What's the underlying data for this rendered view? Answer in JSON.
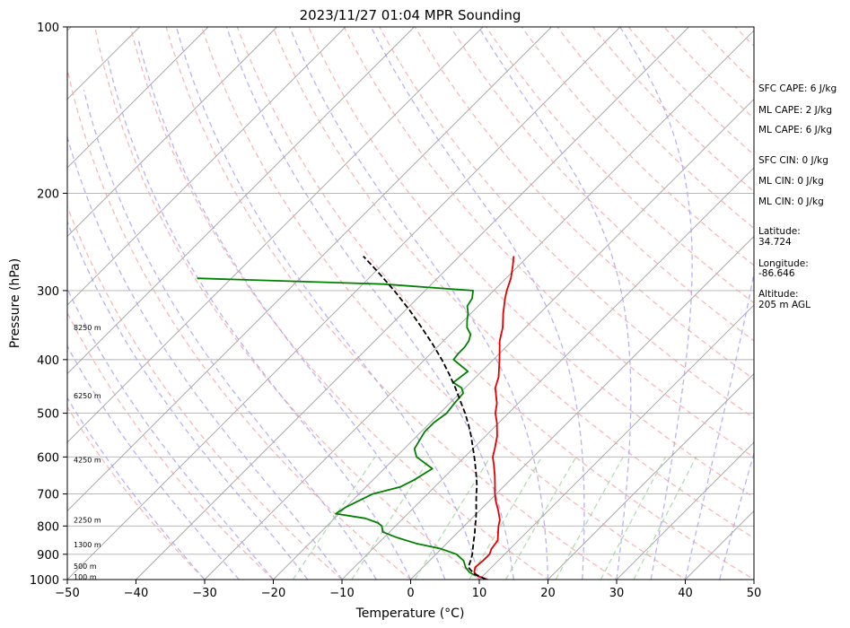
{
  "chart_data": {
    "type": "line",
    "title": "2023/11/27 01:04 MPR Sounding",
    "xlabel": "Temperature (°C)",
    "ylabel": "Pressure (hPa)",
    "xlim": [
      -50,
      50
    ],
    "ylim": [
      1000,
      100
    ],
    "yscale": "log",
    "x_ticks": [
      -50,
      -40,
      -30,
      -20,
      -10,
      0,
      10,
      20,
      30,
      40,
      50
    ],
    "y_ticks": [
      1000,
      900,
      800,
      700,
      600,
      500,
      400,
      300,
      200,
      100
    ],
    "grid": true,
    "colors": {
      "temperature": "#e00000",
      "dewpoint": "#008000",
      "parcel": "#000000",
      "dry_adiabat": "#f4a0a0",
      "moist_adiabat": "#a8a0ee",
      "mixing_ratio": "#9ad09a",
      "isotherm": "#a0a0a0"
    },
    "series": [
      {
        "key": "temperature",
        "pressure": [
          1000,
          985,
          970,
          950,
          925,
          900,
          880,
          850,
          820,
          800,
          780,
          750,
          720,
          700,
          680,
          650,
          620,
          600,
          580,
          550,
          520,
          500,
          480,
          450,
          430,
          400,
          370,
          350,
          330,
          310,
          300,
          285,
          270,
          260
        ],
        "values": [
          11.2,
          9.2,
          8.2,
          7.6,
          7.8,
          7.8,
          7.3,
          7.0,
          5.8,
          5.0,
          4.3,
          2.7,
          0.9,
          -0.2,
          -1.2,
          -2.8,
          -4.6,
          -5.9,
          -6.8,
          -8.3,
          -10.3,
          -11.9,
          -13.1,
          -15.6,
          -16.7,
          -19.1,
          -21.8,
          -23.3,
          -25.3,
          -27.2,
          -28.1,
          -29.3,
          -30.9,
          -32.1
        ]
      },
      {
        "key": "dewpoint",
        "pressure": [
          985,
          970,
          950,
          925,
          900,
          880,
          860,
          840,
          820,
          800,
          790,
          775,
          760,
          740,
          720,
          700,
          680,
          660,
          630,
          600,
          580,
          560,
          540,
          520,
          500,
          480,
          460,
          450,
          440,
          420,
          400,
          390,
          380,
          370,
          360,
          350,
          340,
          330,
          320,
          310,
          300,
          292,
          285
        ],
        "values": [
          9.0,
          7.5,
          6.2,
          5.0,
          3.0,
          0.0,
          -4.5,
          -8.0,
          -11.0,
          -12.0,
          -13.0,
          -15.5,
          -20.5,
          -20.0,
          -19.0,
          -18.0,
          -15.0,
          -14.0,
          -13.0,
          -17.0,
          -18.5,
          -19.0,
          -19.5,
          -19.5,
          -19.0,
          -19.3,
          -19.5,
          -20.5,
          -22.5,
          -22.0,
          -25.8,
          -26.0,
          -26.0,
          -26.3,
          -27.0,
          -28.5,
          -29.5,
          -30.4,
          -31.6,
          -32.0,
          -33.0,
          -47.0,
          -75.0
        ]
      },
      {
        "key": "parcel",
        "pressure": [
          1000,
          975,
          950,
          925,
          900,
          875,
          850,
          825,
          800,
          775,
          750,
          725,
          700,
          675,
          650,
          625,
          600,
          575,
          550,
          525,
          500,
          475,
          450,
          425,
          400,
          375,
          350,
          325,
          300,
          275,
          260
        ],
        "values": [
          11.0,
          8.3,
          6.6,
          6.0,
          5.3,
          4.4,
          3.5,
          2.6,
          1.6,
          0.6,
          -0.5,
          -1.7,
          -2.9,
          -4.1,
          -5.5,
          -7.0,
          -8.6,
          -10.3,
          -12.1,
          -14.1,
          -16.3,
          -18.8,
          -21.4,
          -24.3,
          -27.5,
          -31.1,
          -35.1,
          -39.5,
          -44.5,
          -50.2,
          -54.0
        ]
      }
    ],
    "height_labels": [
      {
        "text": "100 m",
        "pressure": 988
      },
      {
        "text": "500 m",
        "pressure": 945
      },
      {
        "text": "1300 m",
        "pressure": 865
      },
      {
        "text": "2250 m",
        "pressure": 780
      },
      {
        "text": "4250 m",
        "pressure": 607
      },
      {
        "text": "6250 m",
        "pressure": 465
      },
      {
        "text": "8250 m",
        "pressure": 350
      }
    ]
  },
  "info_panel": [
    "SFC CAPE: 6 J/kg",
    "ML CAPE: 2 J/kg",
    "ML CAPE: 6 J/kg",
    "SFC CIN: 0 J/kg",
    "ML CIN: 0 J/kg",
    "ML CIN: 0 J/kg",
    "Latitude:",
    "34.724",
    "Longitude:",
    "-86.646",
    "Altitude:",
    "205 m AGL"
  ]
}
